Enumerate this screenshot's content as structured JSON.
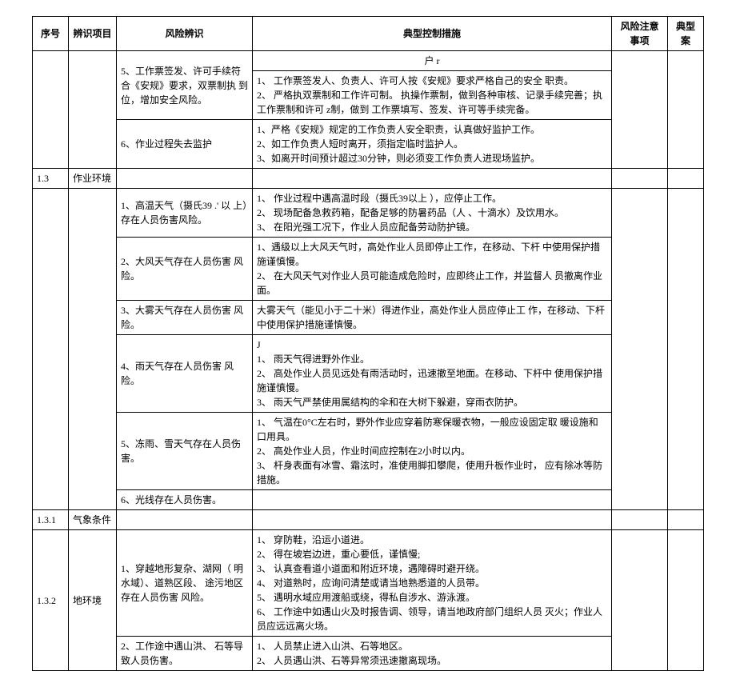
{
  "headers": {
    "seq": "序号",
    "item": "辨识项目",
    "risk": "风险辨识",
    "measure": "典型控制措施",
    "note": "风险注意事项",
    "case": "典型案"
  },
  "rows": [
    {
      "risk": "5、工作票签发、许可手续符 合《安规》要求，双票制执 到位，增加安全风险。",
      "measure_pre": "户   r",
      "measure": "1、 工作票签发人、负责人、许可人按《安规》要求严格自己的安全 职责。\n2、 严格执双票制和工作许可制。               执操作票制，做到各种审核、记录手续完善；执工作票制和许可            z制，做到 工作票填写、签发、许可等手续完备。"
    },
    {
      "risk": "6、作业过程失去监护",
      "measure": "1、严格《安规》规定的工作负责人安全职责，认真做好监护工作。\n2、如工作负责人短时离开，须指定临时监护人。\n3、如离开时间预计超过30分钟，则必须变工作负责人进现场监护。"
    },
    {
      "seq": "1.3",
      "item": "作业环境"
    },
    {
      "risk": "1、高温天气（摄氏39 .' 以 上）存在人员伤害风险。",
      "measure": "1、 作业过程中遇高温时段（摄氏39以上 ），应停止工作。\n2、 现场配备急救药箱，配备足够的防暑药品（人 、十滴水）及饮用水。\n3、 在阳光强工况下，作业人员应配备劳动防护镜。"
    },
    {
      "risk": "2、大风天气存在人员伤害 风险。",
      "measure": "1、遇级以上大风天气时，高处作业人员即停止工作，在移动、下杆 中使用保护措施谨慎慢。\n2、 在大风天气对作业人员可能造成危险时，应即终止工作，并监督人 员撤离作业面。"
    },
    {
      "risk": "3、大雾天气存在人员伤害 风险。",
      "measure": "大雾天气（能见小于二十米）得进作业，高处作业人员应停止工 作，在移动、下杆中使用保护措施谨慎慢。"
    },
    {
      "risk": "4、雨天气存在人员伤害 风险。",
      "measure": "J\n1、 雨天气得进野外作业。\n2、 高处作业人员见远处有雨活动时，迅速撤至地面。在移动、下杆中 使用保护措施谨慎慢。\n3、 雨天气严禁使用属结构的伞和在大树下躲避，穿雨衣防护。"
    },
    {
      "risk": "5、冻雨、雪天气存在人员伤 害。",
      "measure": "1、 气温在0°C左右时，野外作业应穿着防寒保暖衣物，一般应设固定取 暖设施和口用具。\n2、 高处作业人员，作业时间应控制在2小时以内。\n3、 杆身表面有冰雪、霜泫时，准使用脚扣攀爬，使用升板作业时， 应有除冰等防措施。"
    },
    {
      "seq": "1.3.1",
      "item": "气象条件",
      "risk": "6、光线存在人员伤害。"
    },
    {
      "seq": "1.3.2",
      "item": "地环境",
      "risk": "1、穿越地形复杂、湖网（ 明水域）、道熟区段、 途污地区存在人员伤害 风险。",
      "measure": "1、 穿防鞋，沿运小道进。\n2、 得在坡岩边进，重心要低，谨慎慢;\n3、 认真查看道小道面和附近环境，遇障碍时避开绕。\n4、 对道熟时，应询问清楚或请当地熟悉道的人员带。\n5、 遇明水域应用渡船或绕，得私自涉水、游泳渡。\n6、 工作途中如遇山火及时报告调、领导，请当地政府部门组织人员 灭火；作业人员应远远离火场。"
    },
    {
      "risk": "2、工作途中遇山洪、 石等导致人员伤害。",
      "measure": "1、 人员禁止进入山洪、石等地区。\n2、 人员遇山洪、石等异常须迅速撤离现场。"
    }
  ]
}
